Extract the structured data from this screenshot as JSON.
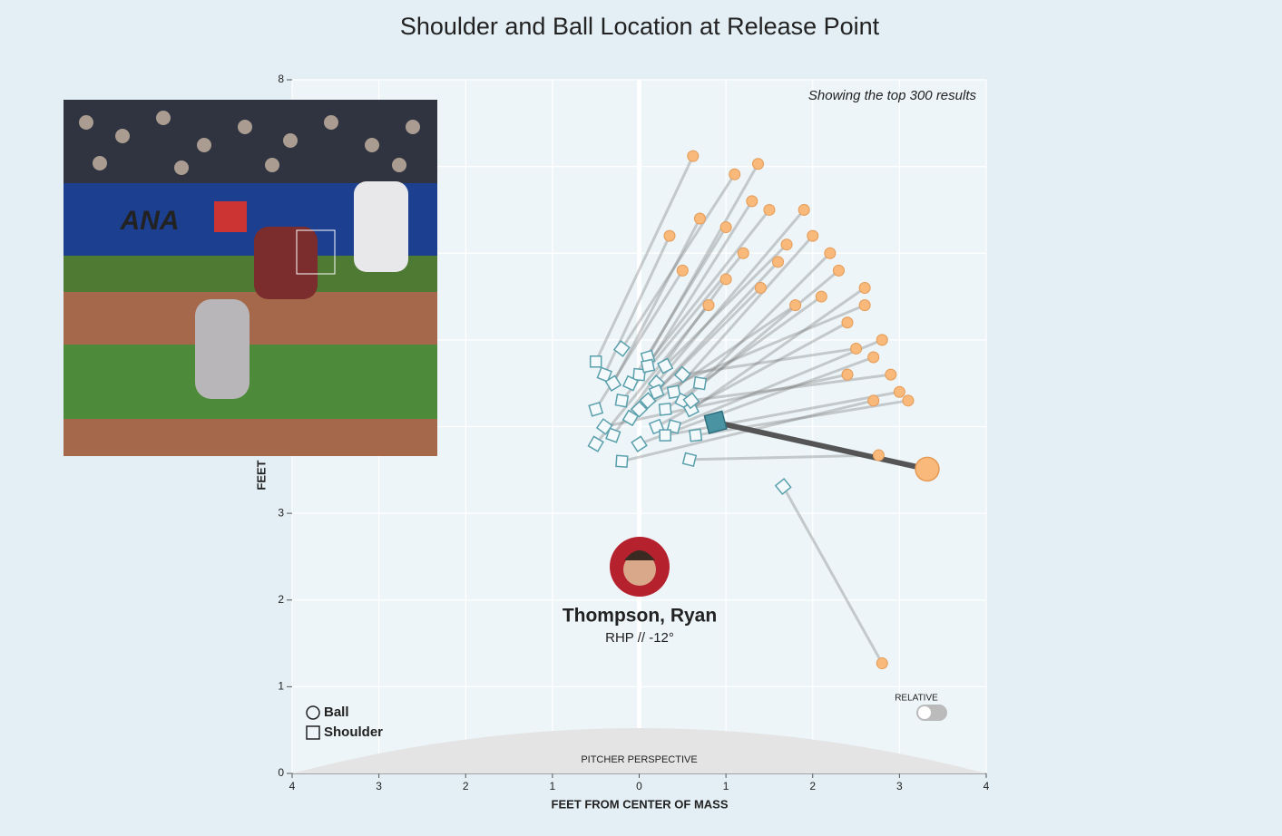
{
  "chart_data": {
    "type": "scatter",
    "title": "Shoulder and Ball Location at Release Point",
    "note": "Showing the top 300 results",
    "x_label": "FEET FROM CENTER OF MASS",
    "y_label": "FEET",
    "xlim": [
      -4,
      4
    ],
    "ylim": [
      0,
      8
    ],
    "xticks": [
      {
        "value": -4,
        "label": "4"
      },
      {
        "value": -3,
        "label": "3"
      },
      {
        "value": -2,
        "label": "2"
      },
      {
        "value": -1,
        "label": "1"
      },
      0,
      1,
      2,
      3,
      4
    ],
    "yticks": [
      0,
      1,
      2,
      3,
      4,
      5,
      6,
      7,
      8
    ],
    "grid": true,
    "pitcher": {
      "name": "Thompson, Ryan",
      "detail": "RHP // -12°"
    },
    "toggle_label": "RELATIVE",
    "mound_label": "PITCHER PERSPECTIVE",
    "series": [
      {
        "name": "Ball",
        "marker": "circle",
        "color": "#f9b97a",
        "x": [
          0.62,
          1.1,
          1.37,
          0.35,
          0.7,
          1.5,
          1.9,
          2.0,
          2.3,
          2.6,
          1.2,
          1.6,
          2.1,
          1.8,
          2.4,
          2.8,
          2.9,
          3.0,
          2.4,
          0.5,
          1.0,
          2.7,
          2.7,
          2.5,
          1.3,
          1.0,
          1.7,
          2.2,
          1.4,
          3.1,
          0.8,
          2.6,
          2.76,
          2.8
        ],
        "y": [
          7.12,
          6.91,
          7.03,
          6.2,
          6.4,
          6.5,
          6.5,
          6.2,
          5.8,
          5.6,
          6.0,
          5.9,
          5.5,
          5.4,
          5.2,
          5.0,
          4.6,
          4.4,
          4.6,
          5.8,
          5.7,
          4.8,
          4.3,
          4.9,
          6.6,
          6.3,
          6.1,
          6.0,
          5.6,
          4.3,
          5.4,
          5.4,
          3.67,
          1.27
        ]
      },
      {
        "name": "Shoulder",
        "marker": "square",
        "color": "#5ba0ad",
        "x": [
          -0.5,
          -0.2,
          0.1,
          -0.4,
          -0.3,
          0.0,
          0.2,
          0.4,
          0.5,
          0.6,
          -0.2,
          0.1,
          0.3,
          -0.1,
          0.2,
          0.4,
          0.6,
          0.3,
          -0.4,
          -0.5,
          -0.3,
          0.0,
          -0.2,
          0.5,
          0.1,
          -0.1,
          0.3,
          0.7,
          0.0,
          0.65,
          -0.5,
          0.2,
          0.58,
          1.66
        ],
        "y": [
          4.75,
          4.9,
          4.8,
          4.6,
          4.5,
          4.6,
          4.5,
          4.4,
          4.3,
          4.2,
          4.3,
          4.3,
          4.2,
          4.1,
          4.0,
          4.0,
          4.3,
          3.9,
          4.0,
          4.2,
          3.9,
          3.8,
          3.6,
          4.6,
          4.7,
          4.5,
          4.7,
          4.5,
          4.2,
          3.9,
          3.8,
          4.4,
          3.62,
          3.31
        ]
      }
    ],
    "highlight": {
      "ball": [
        3.32,
        3.51
      ],
      "shoulder": [
        0.88,
        4.05
      ]
    }
  }
}
